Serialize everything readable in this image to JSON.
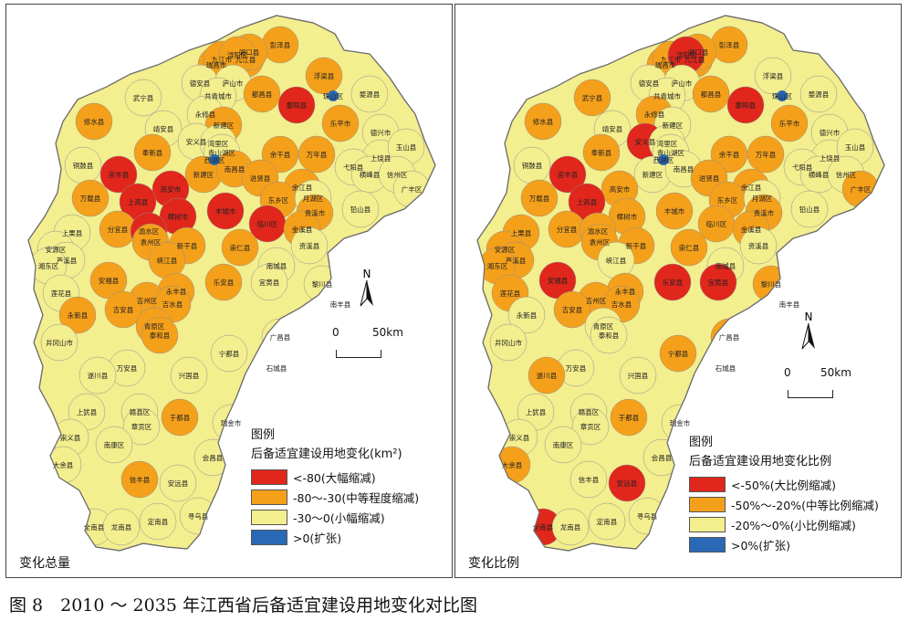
{
  "colors": {
    "large_decrease": "#e1261c",
    "medium_decrease": "#f5a01a",
    "small_decrease": "#f3ee8e",
    "expansion": "#2a69b6",
    "outline": "#7a7a7a"
  },
  "left_panel": {
    "title": "变化总量",
    "legend": {
      "title": "图例",
      "subtitle": "后备适宜建设用地变化(km²)",
      "items": [
        {
          "label": "<-80(大幅缩减)",
          "color": "#e1261c"
        },
        {
          "label": "-80～-30(中等程度缩减)",
          "color": "#f5a01a"
        },
        {
          "label": "-30～0(小幅缩减)",
          "color": "#f3ee8e"
        },
        {
          "label": ">0(扩张)",
          "color": "#2a69b6"
        }
      ]
    },
    "north_label": "N",
    "scale": {
      "start": "0",
      "end": "50km"
    },
    "districts": [
      {
        "name": "彭泽县",
        "cls": "medium"
      },
      {
        "name": "九江县",
        "cls": "medium"
      },
      {
        "name": "湖口县",
        "cls": "medium"
      },
      {
        "name": "瑞昌市",
        "cls": "medium"
      },
      {
        "name": "九江市",
        "cls": "medium"
      },
      {
        "name": "浔阳区",
        "cls": "medium"
      },
      {
        "name": "德安县",
        "cls": "small"
      },
      {
        "name": "庐山市",
        "cls": "small"
      },
      {
        "name": "都昌县",
        "cls": "medium"
      },
      {
        "name": "浮梁县",
        "cls": "medium"
      },
      {
        "name": "武宁县",
        "cls": "small"
      },
      {
        "name": "共青城市",
        "cls": "small"
      },
      {
        "name": "鄱阳县",
        "cls": "large"
      },
      {
        "name": "珠山区",
        "cls": "expand"
      },
      {
        "name": "婺源县",
        "cls": "small"
      },
      {
        "name": "修水县",
        "cls": "medium"
      },
      {
        "name": "永修县",
        "cls": "small"
      },
      {
        "name": "靖安县",
        "cls": "small"
      },
      {
        "name": "新建区",
        "cls": "medium"
      },
      {
        "name": "乐平市",
        "cls": "medium"
      },
      {
        "name": "安义县",
        "cls": "small"
      },
      {
        "name": "德兴市",
        "cls": "small"
      },
      {
        "name": "湾里区",
        "cls": "small"
      },
      {
        "name": "青山湖区",
        "cls": "small"
      },
      {
        "name": "西湖区",
        "cls": "expand"
      },
      {
        "name": "奉新县",
        "cls": "medium"
      },
      {
        "name": "余干县",
        "cls": "medium"
      },
      {
        "name": "万年县",
        "cls": "medium"
      },
      {
        "name": "上饶县",
        "cls": "small"
      },
      {
        "name": "玉山县",
        "cls": "small"
      },
      {
        "name": "宜丰县",
        "cls": "large"
      },
      {
        "name": "铜鼓县",
        "cls": "small"
      },
      {
        "name": "新建区",
        "cls": "medium"
      },
      {
        "name": "南昌县",
        "cls": "medium"
      },
      {
        "name": "进贤县",
        "cls": "medium"
      },
      {
        "name": "弋阳县",
        "cls": "small"
      },
      {
        "name": "横峰县",
        "cls": "small"
      },
      {
        "name": "信州区",
        "cls": "small"
      },
      {
        "name": "高安市",
        "cls": "large"
      },
      {
        "name": "余江县",
        "cls": "medium"
      },
      {
        "name": "万载县",
        "cls": "medium"
      },
      {
        "name": "上高县",
        "cls": "large"
      },
      {
        "name": "东乡区",
        "cls": "medium"
      },
      {
        "name": "月湖区",
        "cls": "small"
      },
      {
        "name": "广丰区",
        "cls": "small"
      },
      {
        "name": "丰城市",
        "cls": "large"
      },
      {
        "name": "贵溪市",
        "cls": "medium"
      },
      {
        "name": "铅山县",
        "cls": "small"
      },
      {
        "name": "樟树市",
        "cls": "large"
      },
      {
        "name": "上栗县",
        "cls": "small"
      },
      {
        "name": "分宜县",
        "cls": "medium"
      },
      {
        "name": "渝水区",
        "cls": "large"
      },
      {
        "name": "临川区",
        "cls": "large"
      },
      {
        "name": "金溪县",
        "cls": "medium"
      },
      {
        "name": "袁州区",
        "cls": "medium"
      },
      {
        "name": "安源区",
        "cls": "small"
      },
      {
        "name": "芦溪县",
        "cls": "small"
      },
      {
        "name": "湘东区",
        "cls": "small"
      },
      {
        "name": "新干县",
        "cls": "medium"
      },
      {
        "name": "崇仁县",
        "cls": "medium"
      },
      {
        "name": "资溪县",
        "cls": "small"
      },
      {
        "name": "峡江县",
        "cls": "medium"
      },
      {
        "name": "南城县",
        "cls": "small"
      },
      {
        "name": "安福县",
        "cls": "medium"
      },
      {
        "name": "莲花县",
        "cls": "small"
      },
      {
        "name": "永丰县",
        "cls": "medium"
      },
      {
        "name": "乐安县",
        "cls": "medium"
      },
      {
        "name": "宜黄县",
        "cls": "small"
      },
      {
        "name": "黎川县",
        "cls": "small"
      },
      {
        "name": "吉州区",
        "cls": "medium"
      },
      {
        "name": "吉水县",
        "cls": "medium"
      },
      {
        "name": "吉安县",
        "cls": "medium"
      },
      {
        "name": "南丰县",
        "cls": "small"
      },
      {
        "name": "永新县",
        "cls": "medium"
      },
      {
        "name": "青原区",
        "cls": "medium"
      },
      {
        "name": "泰和县",
        "cls": "medium"
      },
      {
        "name": "井冈山市",
        "cls": "small"
      },
      {
        "name": "广昌县",
        "cls": "small"
      },
      {
        "name": "宁都县",
        "cls": "small"
      },
      {
        "name": "万安县",
        "cls": "small"
      },
      {
        "name": "兴国县",
        "cls": "small"
      },
      {
        "name": "石城县",
        "cls": "small"
      },
      {
        "name": "遂川县",
        "cls": "small"
      },
      {
        "name": "上犹县",
        "cls": "small"
      },
      {
        "name": "赣县区",
        "cls": "small"
      },
      {
        "name": "章贡区",
        "cls": "small"
      },
      {
        "name": "于都县",
        "cls": "medium"
      },
      {
        "name": "瑞金市",
        "cls": "small"
      },
      {
        "name": "崇义县",
        "cls": "small"
      },
      {
        "name": "南康区",
        "cls": "small"
      },
      {
        "name": "大余县",
        "cls": "small"
      },
      {
        "name": "会昌县",
        "cls": "small"
      },
      {
        "name": "信丰县",
        "cls": "medium"
      },
      {
        "name": "安远县",
        "cls": "small"
      },
      {
        "name": "全南县",
        "cls": "small"
      },
      {
        "name": "龙南县",
        "cls": "small"
      },
      {
        "name": "定南县",
        "cls": "small"
      },
      {
        "name": "寻乌县",
        "cls": "small"
      }
    ]
  },
  "right_panel": {
    "title": "变化比例",
    "legend": {
      "title": "图例",
      "subtitle": "后备适宜建设用地变化比例",
      "items": [
        {
          "label": "<-50%(大比例缩减)",
          "color": "#e1261c"
        },
        {
          "label": "-50%～-20%(中等比例缩减)",
          "color": "#f5a01a"
        },
        {
          "label": "-20%～0%(小比例缩减)",
          "color": "#f3ee8e"
        },
        {
          "label": ">0%(扩张)",
          "color": "#2a69b6"
        }
      ]
    },
    "north_label": "N",
    "scale": {
      "start": "0",
      "end": "50km"
    },
    "districts": [
      {
        "name": "彭泽县",
        "cls": "medium"
      },
      {
        "name": "九江县",
        "cls": "medium"
      },
      {
        "name": "湖口县",
        "cls": "medium"
      },
      {
        "name": "瑞昌市",
        "cls": "medium"
      },
      {
        "name": "九江市",
        "cls": "medium"
      },
      {
        "name": "浔阳区",
        "cls": "large"
      },
      {
        "name": "德安县",
        "cls": "small"
      },
      {
        "name": "庐山市",
        "cls": "small"
      },
      {
        "name": "都昌县",
        "cls": "medium"
      },
      {
        "name": "浮梁县",
        "cls": "small"
      },
      {
        "name": "武宁县",
        "cls": "medium"
      },
      {
        "name": "共青城市",
        "cls": "small"
      },
      {
        "name": "鄱阳县",
        "cls": "large"
      },
      {
        "name": "珠山区",
        "cls": "expand"
      },
      {
        "name": "婺源县",
        "cls": "small"
      },
      {
        "name": "修水县",
        "cls": "medium"
      },
      {
        "name": "永修县",
        "cls": "medium"
      },
      {
        "name": "靖安县",
        "cls": "small"
      },
      {
        "name": "新建区",
        "cls": "small"
      },
      {
        "name": "乐平市",
        "cls": "medium"
      },
      {
        "name": "安义县",
        "cls": "large"
      },
      {
        "name": "德兴市",
        "cls": "small"
      },
      {
        "name": "湾里区",
        "cls": "small"
      },
      {
        "name": "青山湖区",
        "cls": "small"
      },
      {
        "name": "西湖区",
        "cls": "expand"
      },
      {
        "name": "奉新县",
        "cls": "medium"
      },
      {
        "name": "余干县",
        "cls": "medium"
      },
      {
        "name": "万年县",
        "cls": "medium"
      },
      {
        "name": "上饶县",
        "cls": "small"
      },
      {
        "name": "玉山县",
        "cls": "small"
      },
      {
        "name": "宜丰县",
        "cls": "large"
      },
      {
        "name": "铜鼓县",
        "cls": "small"
      },
      {
        "name": "新建区",
        "cls": "small"
      },
      {
        "name": "南昌县",
        "cls": "small"
      },
      {
        "name": "进贤县",
        "cls": "medium"
      },
      {
        "name": "弋阳县",
        "cls": "small"
      },
      {
        "name": "横峰县",
        "cls": "small"
      },
      {
        "name": "信州区",
        "cls": "small"
      },
      {
        "name": "高安市",
        "cls": "medium"
      },
      {
        "name": "余江县",
        "cls": "medium"
      },
      {
        "name": "万载县",
        "cls": "medium"
      },
      {
        "name": "上高县",
        "cls": "large"
      },
      {
        "name": "东乡区",
        "cls": "medium"
      },
      {
        "name": "月湖区",
        "cls": "small"
      },
      {
        "name": "广丰区",
        "cls": "medium"
      },
      {
        "name": "丰城市",
        "cls": "medium"
      },
      {
        "name": "贵溪市",
        "cls": "medium"
      },
      {
        "name": "铅山县",
        "cls": "small"
      },
      {
        "name": "樟树市",
        "cls": "medium"
      },
      {
        "name": "上栗县",
        "cls": "medium"
      },
      {
        "name": "分宜县",
        "cls": "medium"
      },
      {
        "name": "渝水区",
        "cls": "medium"
      },
      {
        "name": "临川区",
        "cls": "medium"
      },
      {
        "name": "金溪县",
        "cls": "medium"
      },
      {
        "name": "袁州区",
        "cls": "medium"
      },
      {
        "name": "安源区",
        "cls": "medium"
      },
      {
        "name": "芦溪县",
        "cls": "medium"
      },
      {
        "name": "湘东区",
        "cls": "medium"
      },
      {
        "name": "新干县",
        "cls": "medium"
      },
      {
        "name": "崇仁县",
        "cls": "medium"
      },
      {
        "name": "资溪县",
        "cls": "small"
      },
      {
        "name": "峡江县",
        "cls": "small"
      },
      {
        "name": "南城县",
        "cls": "small"
      },
      {
        "name": "安福县",
        "cls": "large"
      },
      {
        "name": "莲花县",
        "cls": "medium"
      },
      {
        "name": "永丰县",
        "cls": "medium"
      },
      {
        "name": "乐安县",
        "cls": "large"
      },
      {
        "name": "宜黄县",
        "cls": "large"
      },
      {
        "name": "黎川县",
        "cls": "medium"
      },
      {
        "name": "吉州区",
        "cls": "medium"
      },
      {
        "name": "吉水县",
        "cls": "medium"
      },
      {
        "name": "吉安县",
        "cls": "medium"
      },
      {
        "name": "南丰县",
        "cls": "small"
      },
      {
        "name": "永新县",
        "cls": "small"
      },
      {
        "name": "青原区",
        "cls": "small"
      },
      {
        "name": "泰和县",
        "cls": "small"
      },
      {
        "name": "井冈山市",
        "cls": "small"
      },
      {
        "name": "广昌县",
        "cls": "medium"
      },
      {
        "name": "宁都县",
        "cls": "medium"
      },
      {
        "name": "万安县",
        "cls": "small"
      },
      {
        "name": "兴国县",
        "cls": "small"
      },
      {
        "name": "石城县",
        "cls": "small"
      },
      {
        "name": "遂川县",
        "cls": "medium"
      },
      {
        "name": "上犹县",
        "cls": "small"
      },
      {
        "name": "赣县区",
        "cls": "small"
      },
      {
        "name": "章贡区",
        "cls": "small"
      },
      {
        "name": "于都县",
        "cls": "medium"
      },
      {
        "name": "瑞金市",
        "cls": "small"
      },
      {
        "name": "崇义县",
        "cls": "small"
      },
      {
        "name": "南康区",
        "cls": "small"
      },
      {
        "name": "大余县",
        "cls": "medium"
      },
      {
        "name": "会昌县",
        "cls": "small"
      },
      {
        "name": "信丰县",
        "cls": "small"
      },
      {
        "name": "安远县",
        "cls": "large"
      },
      {
        "name": "全南县",
        "cls": "large"
      },
      {
        "name": "龙南县",
        "cls": "small"
      },
      {
        "name": "定南县",
        "cls": "small"
      },
      {
        "name": "寻乌县",
        "cls": "small"
      }
    ]
  },
  "caption": "图 8　2010 ～ 2035 年江西省后备适宜建设用地变化对比图"
}
